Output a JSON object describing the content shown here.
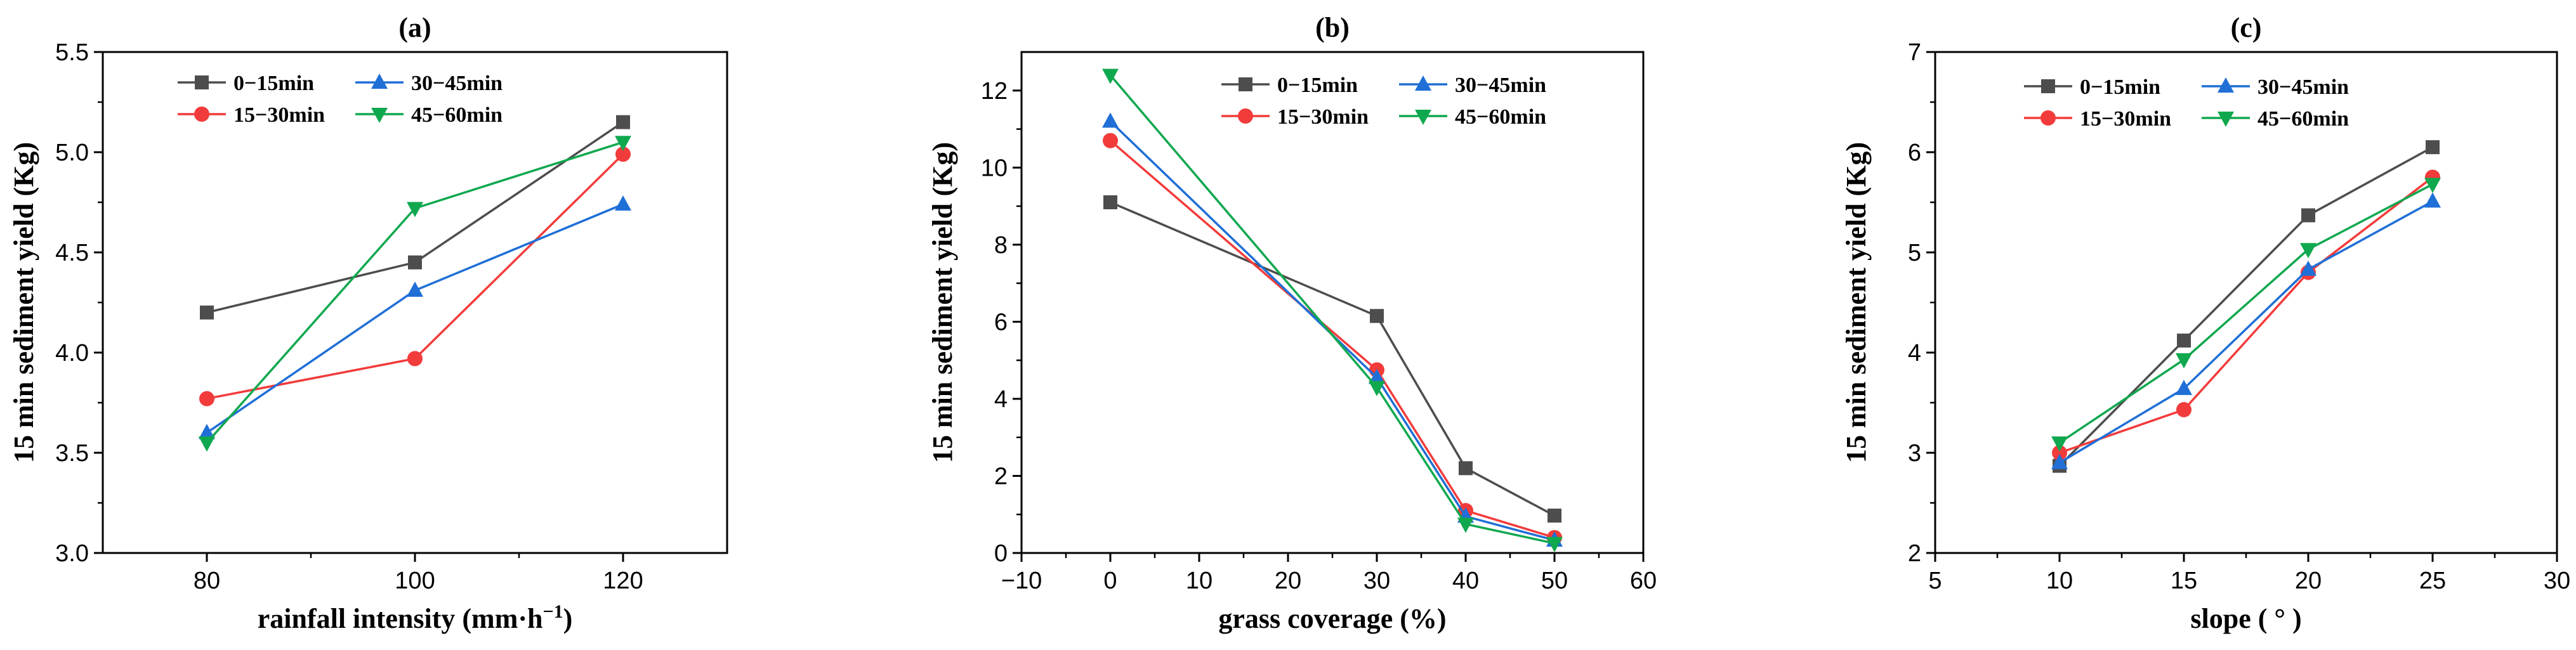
{
  "colors": {
    "0-15min": "#4d4d4d",
    "15-30min": "#f23b3b",
    "30-45min": "#1f6fd6",
    "45-60min": "#10a84f"
  },
  "markers": {
    "0-15min": "square",
    "15-30min": "circle",
    "30-45min": "triangle-up",
    "45-60min": "triangle-down"
  },
  "chart_data": [
    {
      "type": "line",
      "title": "(a)",
      "xlabel": "rainfall intensity (mm·h",
      "xlabel_sup": "−1",
      "xlabel_end": ")",
      "ylabel": "15 min sediment yield (Kg)",
      "xlim": [
        70,
        130
      ],
      "ylim": [
        3.0,
        5.5
      ],
      "x_ticks": [
        80,
        100,
        120
      ],
      "x_tick_labels": [
        "80",
        "100",
        "120"
      ],
      "y_ticks": [
        3.0,
        3.5,
        4.0,
        4.5,
        5.0,
        5.5
      ],
      "y_tick_labels": [
        "3.0",
        "3.5",
        "4.0",
        "4.5",
        "5.0",
        "5.5"
      ],
      "legend_position": "top-left",
      "x": [
        80,
        100,
        120
      ],
      "series": [
        {
          "name": "0−15min",
          "key": "0-15min",
          "values": [
            4.2,
            4.45,
            5.15
          ]
        },
        {
          "name": "15−30min",
          "key": "15-30min",
          "values": [
            3.77,
            3.97,
            4.99
          ]
        },
        {
          "name": "30−45min",
          "key": "30-45min",
          "values": [
            3.6,
            4.31,
            4.74
          ]
        },
        {
          "name": "45−60min",
          "key": "45-60min",
          "values": [
            3.55,
            4.72,
            5.05
          ]
        }
      ]
    },
    {
      "type": "line",
      "title": "(b)",
      "xlabel": "grass coverage (%)",
      "ylabel": "15 min sediment yield (Kg)",
      "xlim": [
        -10,
        60
      ],
      "ylim": [
        0,
        13
      ],
      "x_ticks": [
        -10,
        0,
        10,
        20,
        30,
        40,
        50,
        60
      ],
      "x_tick_labels": [
        "−10",
        "0",
        "10",
        "20",
        "30",
        "40",
        "50",
        "60"
      ],
      "y_ticks": [
        0,
        2,
        4,
        6,
        8,
        10,
        12
      ],
      "y_tick_labels": [
        "0",
        "2",
        "4",
        "6",
        "8",
        "10",
        "12"
      ],
      "legend_position": "top-right",
      "x": [
        0,
        30,
        40,
        50
      ],
      "series": [
        {
          "name": "0−15min",
          "key": "0-15min",
          "values": [
            9.1,
            6.15,
            2.2,
            0.97
          ]
        },
        {
          "name": "15−30min",
          "key": "15-30min",
          "values": [
            10.7,
            4.75,
            1.1,
            0.4
          ]
        },
        {
          "name": "30−45min",
          "key": "30-45min",
          "values": [
            11.2,
            4.55,
            0.95,
            0.33
          ]
        },
        {
          "name": "45−60min",
          "key": "45-60min",
          "values": [
            12.4,
            4.3,
            0.75,
            0.25
          ]
        }
      ]
    },
    {
      "type": "line",
      "title": "(c)",
      "xlabel": "slope ( ° )",
      "ylabel": "15 min sediment yield (Kg)",
      "xlim": [
        5,
        30
      ],
      "ylim": [
        2,
        7
      ],
      "x_ticks": [
        5,
        10,
        15,
        20,
        25,
        30
      ],
      "x_tick_labels": [
        "5",
        "10",
        "15",
        "20",
        "25",
        "30"
      ],
      "y_ticks": [
        2,
        3,
        4,
        5,
        6,
        7
      ],
      "y_tick_labels": [
        "2",
        "3",
        "4",
        "5",
        "6",
        "7"
      ],
      "legend_position": "top-left",
      "x": [
        10,
        15,
        20,
        25
      ],
      "series": [
        {
          "name": "0−15min",
          "key": "0-15min",
          "values": [
            2.87,
            4.12,
            5.37,
            6.05
          ]
        },
        {
          "name": "15−30min",
          "key": "15-30min",
          "values": [
            3.0,
            3.43,
            4.8,
            5.75
          ]
        },
        {
          "name": "30−45min",
          "key": "30-45min",
          "values": [
            2.9,
            3.64,
            4.83,
            5.51
          ]
        },
        {
          "name": "45−60min",
          "key": "45-60min",
          "values": [
            3.1,
            3.93,
            5.03,
            5.68
          ]
        }
      ]
    }
  ]
}
